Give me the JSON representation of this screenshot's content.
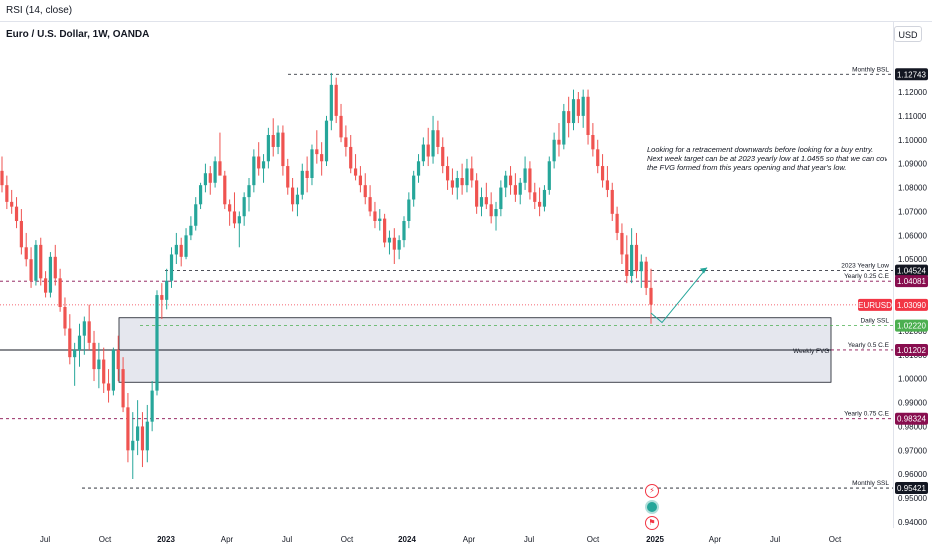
{
  "header": {
    "indicator": "RSI (14, close)",
    "symbol": "Euro / U.S. Dollar, 1W, OANDA",
    "currency_button": "USD"
  },
  "annotation_text": [
    "Looking for a retracement downwards before looking for a buy entry.",
    "Next week target can be at 2023 yearly low at 1.0455 so that we can cover",
    "the FVG formed from this years opening and that year's low."
  ],
  "icons": [
    "flash-icon",
    "teal-circle-icon",
    "flag-icon"
  ],
  "colors": {
    "up": "#26a69a",
    "down": "#ef5350",
    "level_tag_dark": "#131722",
    "level_tag_maroon": "#880e4f",
    "current_tag": "#f23645",
    "daily_ssl_tag": "#4caf50",
    "fvg_fill": "#e0e3eb",
    "arrow": "#26a69a"
  },
  "chart_data": {
    "type": "candlestick",
    "timeframe": "1W",
    "ylim": [
      0.935,
      1.143
    ],
    "y_ticks": [
      "1.12000",
      "1.11000",
      "1.10000",
      "1.09000",
      "1.08000",
      "1.07000",
      "1.06000",
      "1.05000",
      "1.04000",
      "1.03000",
      "1.02000",
      "1.01000",
      "1.00000",
      "0.99000",
      "0.98000",
      "0.97000",
      "0.96000",
      "0.95000",
      "0.94000"
    ],
    "x_ticks": [
      "Jul",
      "Oct",
      "2023",
      "Apr",
      "Jul",
      "Oct",
      "2024",
      "Apr",
      "Jul",
      "Oct",
      "2025",
      "Apr",
      "Jul",
      "Oct"
    ],
    "levels": [
      {
        "name": "Monthly BSL",
        "price": 1.12743,
        "price_label": "1.12743",
        "tag": "dark",
        "style": "dashed"
      },
      {
        "name": "2023 Yearly Low",
        "price": 1.04524,
        "price_label": "1.04524",
        "tag": "dark",
        "style": "dashed"
      },
      {
        "name": "Yearly 0.25 C.E",
        "price": 1.04081,
        "price_label": "1.04081",
        "tag": "maroon",
        "style": "dashed"
      },
      {
        "name": "Daily SSL",
        "price": 1.0222,
        "price_label": "1.02220",
        "tag": "green",
        "style": "dashed"
      },
      {
        "name": "Yearly 0.5 C.E",
        "price": 1.01202,
        "price_label": "1.01202",
        "tag": "maroon",
        "style": "dashed"
      },
      {
        "name": "Yearly 0.75 C.E",
        "price": 0.98324,
        "price_label": "0.98324",
        "tag": "maroon",
        "style": "dashed"
      },
      {
        "name": "Monthly SSL",
        "price": 0.95421,
        "price_label": "0.95421",
        "tag": "dark",
        "style": "dashed"
      }
    ],
    "current_price": {
      "name": "EURUSD",
      "price": 1.0309,
      "price_label": "1.03090"
    },
    "fvg_zone": {
      "label": "Weekly FVG",
      "top": 1.0255,
      "bottom": 0.9985
    },
    "candles": [
      [
        1.087,
        1.093,
        1.078,
        1.081
      ],
      [
        1.081,
        1.085,
        1.071,
        1.074
      ],
      [
        1.074,
        1.079,
        1.069,
        1.072
      ],
      [
        1.072,
        1.076,
        1.063,
        1.066
      ],
      [
        1.066,
        1.071,
        1.052,
        1.055
      ],
      [
        1.055,
        1.061,
        1.047,
        1.05
      ],
      [
        1.05,
        1.055,
        1.038,
        1.041
      ],
      [
        1.041,
        1.058,
        1.039,
        1.056
      ],
      [
        1.056,
        1.059,
        1.039,
        1.042
      ],
      [
        1.042,
        1.045,
        1.034,
        1.036
      ],
      [
        1.036,
        1.053,
        1.034,
        1.051
      ],
      [
        1.051,
        1.056,
        1.039,
        1.042
      ],
      [
        1.042,
        1.046,
        1.028,
        1.03
      ],
      [
        1.03,
        1.034,
        1.018,
        1.021
      ],
      [
        1.021,
        1.027,
        1.006,
        1.009
      ],
      [
        1.009,
        1.015,
        0.997,
        1.012
      ],
      [
        1.012,
        1.023,
        1.005,
        1.018
      ],
      [
        1.018,
        1.026,
        1.01,
        1.024
      ],
      [
        1.024,
        1.031,
        1.012,
        1.015
      ],
      [
        1.015,
        1.02,
        0.999,
        1.004
      ],
      [
        1.004,
        1.015,
        0.996,
        1.008
      ],
      [
        1.008,
        1.013,
        0.994,
        0.998
      ],
      [
        0.998,
        1.004,
        0.99,
        0.995
      ],
      [
        0.995,
        1.013,
        0.993,
        1.012
      ],
      [
        1.012,
        1.018,
        0.999,
        1.004
      ],
      [
        1.004,
        1.009,
        0.986,
        0.988
      ],
      [
        0.988,
        0.994,
        0.965,
        0.97
      ],
      [
        0.97,
        0.986,
        0.958,
        0.974
      ],
      [
        0.974,
        0.991,
        0.968,
        0.98
      ],
      [
        0.98,
        0.986,
        0.963,
        0.97
      ],
      [
        0.97,
        0.989,
        0.965,
        0.982
      ],
      [
        0.982,
        0.999,
        0.978,
        0.995
      ],
      [
        0.995,
        1.037,
        0.993,
        1.035
      ],
      [
        1.035,
        1.04,
        1.025,
        1.033
      ],
      [
        1.033,
        1.046,
        1.029,
        1.041
      ],
      [
        1.041,
        1.055,
        1.038,
        1.052
      ],
      [
        1.052,
        1.061,
        1.048,
        1.056
      ],
      [
        1.056,
        1.059,
        1.047,
        1.051
      ],
      [
        1.051,
        1.063,
        1.05,
        1.06
      ],
      [
        1.06,
        1.068,
        1.058,
        1.064
      ],
      [
        1.064,
        1.076,
        1.062,
        1.073
      ],
      [
        1.073,
        1.082,
        1.071,
        1.081
      ],
      [
        1.081,
        1.09,
        1.078,
        1.086
      ],
      [
        1.086,
        1.089,
        1.077,
        1.082
      ],
      [
        1.082,
        1.093,
        1.08,
        1.091
      ],
      [
        1.091,
        1.103,
        1.087,
        1.085
      ],
      [
        1.085,
        1.087,
        1.071,
        1.073
      ],
      [
        1.073,
        1.075,
        1.064,
        1.07
      ],
      [
        1.07,
        1.078,
        1.063,
        1.065
      ],
      [
        1.065,
        1.07,
        1.055,
        1.068
      ],
      [
        1.068,
        1.078,
        1.064,
        1.076
      ],
      [
        1.076,
        1.084,
        1.07,
        1.081
      ],
      [
        1.081,
        1.096,
        1.078,
        1.093
      ],
      [
        1.093,
        1.099,
        1.085,
        1.088
      ],
      [
        1.088,
        1.094,
        1.082,
        1.091
      ],
      [
        1.091,
        1.105,
        1.088,
        1.102
      ],
      [
        1.102,
        1.109,
        1.093,
        1.097
      ],
      [
        1.097,
        1.106,
        1.094,
        1.103
      ],
      [
        1.103,
        1.106,
        1.085,
        1.089
      ],
      [
        1.089,
        1.092,
        1.077,
        1.08
      ],
      [
        1.08,
        1.084,
        1.07,
        1.073
      ],
      [
        1.073,
        1.08,
        1.068,
        1.077
      ],
      [
        1.077,
        1.09,
        1.075,
        1.087
      ],
      [
        1.087,
        1.093,
        1.078,
        1.084
      ],
      [
        1.084,
        1.098,
        1.081,
        1.096
      ],
      [
        1.096,
        1.104,
        1.09,
        1.094
      ],
      [
        1.094,
        1.099,
        1.085,
        1.091
      ],
      [
        1.091,
        1.11,
        1.089,
        1.108
      ],
      [
        1.108,
        1.128,
        1.104,
        1.123
      ],
      [
        1.123,
        1.126,
        1.107,
        1.11
      ],
      [
        1.11,
        1.115,
        1.099,
        1.101
      ],
      [
        1.101,
        1.106,
        1.093,
        1.097
      ],
      [
        1.097,
        1.102,
        1.086,
        1.088
      ],
      [
        1.088,
        1.094,
        1.083,
        1.085
      ],
      [
        1.085,
        1.089,
        1.078,
        1.081
      ],
      [
        1.081,
        1.086,
        1.073,
        1.076
      ],
      [
        1.076,
        1.081,
        1.068,
        1.07
      ],
      [
        1.07,
        1.074,
        1.063,
        1.066
      ],
      [
        1.066,
        1.071,
        1.062,
        1.067
      ],
      [
        1.067,
        1.069,
        1.055,
        1.057
      ],
      [
        1.057,
        1.062,
        1.052,
        1.059
      ],
      [
        1.059,
        1.063,
        1.048,
        1.054
      ],
      [
        1.054,
        1.06,
        1.05,
        1.058
      ],
      [
        1.058,
        1.068,
        1.055,
        1.066
      ],
      [
        1.066,
        1.078,
        1.063,
        1.075
      ],
      [
        1.075,
        1.087,
        1.072,
        1.085
      ],
      [
        1.085,
        1.094,
        1.082,
        1.091
      ],
      [
        1.091,
        1.101,
        1.089,
        1.098
      ],
      [
        1.098,
        1.105,
        1.089,
        1.093
      ],
      [
        1.093,
        1.11,
        1.09,
        1.104
      ],
      [
        1.104,
        1.108,
        1.094,
        1.097
      ],
      [
        1.097,
        1.101,
        1.086,
        1.089
      ],
      [
        1.089,
        1.093,
        1.079,
        1.083
      ],
      [
        1.083,
        1.088,
        1.077,
        1.08
      ],
      [
        1.08,
        1.087,
        1.075,
        1.084
      ],
      [
        1.084,
        1.09,
        1.077,
        1.081
      ],
      [
        1.081,
        1.092,
        1.078,
        1.088
      ],
      [
        1.088,
        1.093,
        1.08,
        1.083
      ],
      [
        1.083,
        1.086,
        1.069,
        1.072
      ],
      [
        1.072,
        1.08,
        1.068,
        1.076
      ],
      [
        1.076,
        1.082,
        1.071,
        1.073
      ],
      [
        1.073,
        1.078,
        1.065,
        1.068
      ],
      [
        1.068,
        1.074,
        1.062,
        1.071
      ],
      [
        1.071,
        1.083,
        1.068,
        1.08
      ],
      [
        1.08,
        1.087,
        1.076,
        1.085
      ],
      [
        1.085,
        1.089,
        1.077,
        1.081
      ],
      [
        1.081,
        1.086,
        1.074,
        1.077
      ],
      [
        1.077,
        1.084,
        1.073,
        1.082
      ],
      [
        1.082,
        1.093,
        1.079,
        1.088
      ],
      [
        1.088,
        1.091,
        1.075,
        1.078
      ],
      [
        1.078,
        1.082,
        1.071,
        1.074
      ],
      [
        1.074,
        1.08,
        1.068,
        1.072
      ],
      [
        1.072,
        1.081,
        1.07,
        1.079
      ],
      [
        1.079,
        1.093,
        1.077,
        1.091
      ],
      [
        1.091,
        1.103,
        1.088,
        1.1
      ],
      [
        1.1,
        1.107,
        1.093,
        1.098
      ],
      [
        1.098,
        1.115,
        1.096,
        1.112
      ],
      [
        1.112,
        1.118,
        1.101,
        1.107
      ],
      [
        1.107,
        1.121,
        1.104,
        1.117
      ],
      [
        1.117,
        1.12,
        1.107,
        1.11
      ],
      [
        1.11,
        1.121,
        1.105,
        1.118
      ],
      [
        1.118,
        1.121,
        1.098,
        1.102
      ],
      [
        1.102,
        1.107,
        1.093,
        1.096
      ],
      [
        1.096,
        1.1,
        1.086,
        1.089
      ],
      [
        1.089,
        1.094,
        1.08,
        1.083
      ],
      [
        1.083,
        1.089,
        1.076,
        1.079
      ],
      [
        1.079,
        1.082,
        1.066,
        1.069
      ],
      [
        1.069,
        1.072,
        1.058,
        1.061
      ],
      [
        1.061,
        1.065,
        1.048,
        1.052
      ],
      [
        1.052,
        1.06,
        1.04,
        1.043
      ],
      [
        1.043,
        1.063,
        1.04,
        1.056
      ],
      [
        1.056,
        1.061,
        1.042,
        1.045
      ],
      [
        1.045,
        1.052,
        1.038,
        1.049
      ],
      [
        1.049,
        1.051,
        1.035,
        1.038
      ],
      [
        1.038,
        1.046,
        1.023,
        1.031
      ]
    ]
  }
}
